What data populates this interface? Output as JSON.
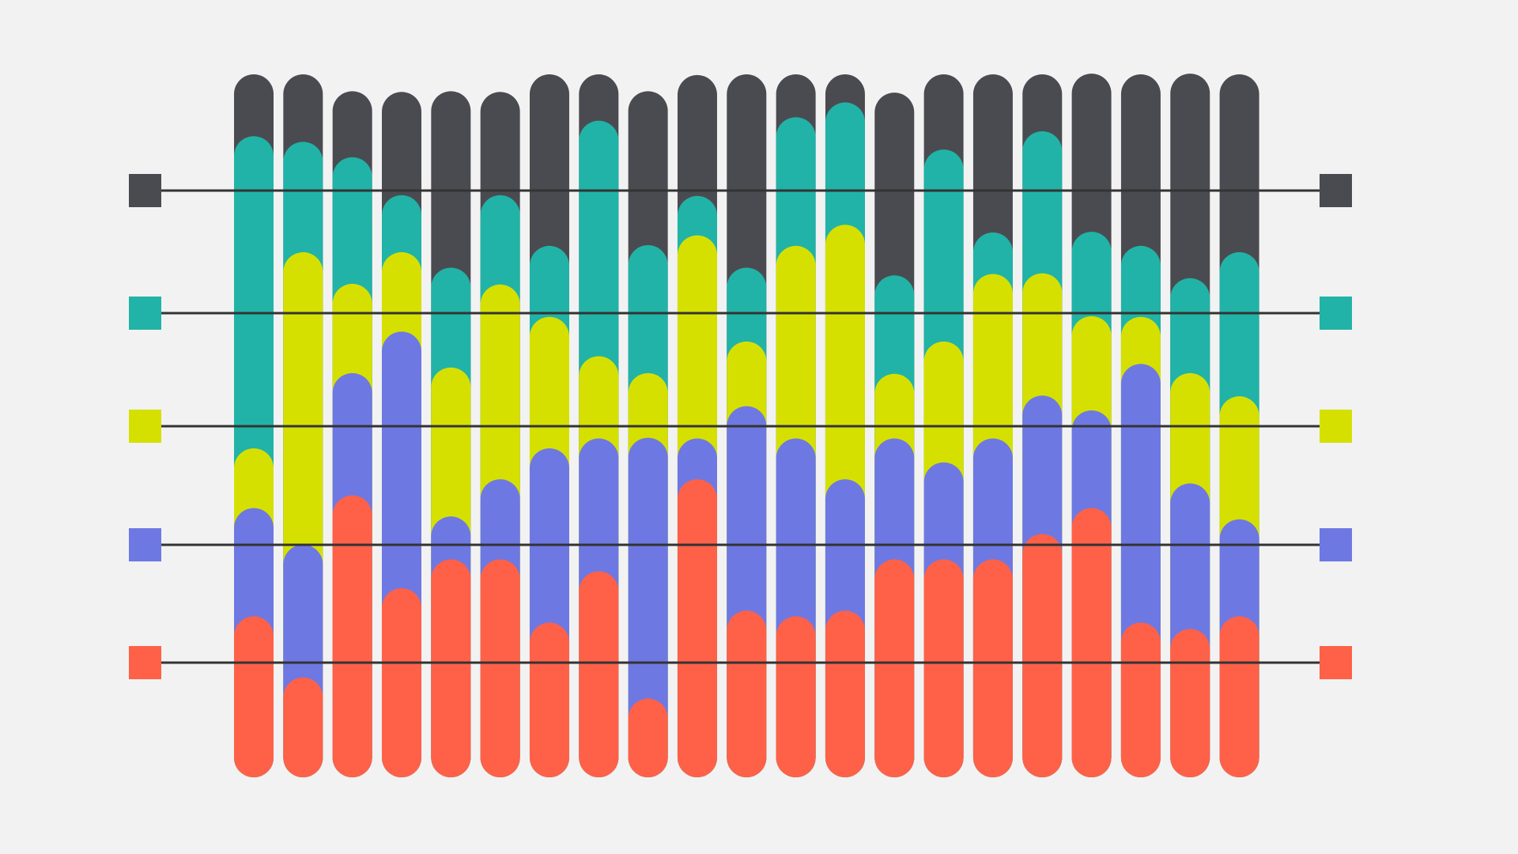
{
  "chart_data": {
    "type": "stacked_bar",
    "ylim": [
      0,
      100
    ],
    "series": [
      {
        "color": "#fe6148",
        "values": [
          22.9,
          14.2,
          40.1,
          26.9,
          31.0,
          31.0,
          22.0,
          29.3,
          11.2,
          42.4,
          23.7,
          22.9,
          23.7,
          31.0,
          31.0,
          31.0,
          34.6,
          38.3,
          22.0,
          21.1,
          22.9
        ]
      },
      {
        "color": "#6e78e2",
        "values": [
          15.4,
          18.9,
          17.4,
          36.5,
          6.1,
          11.4,
          24.8,
          18.9,
          37.1,
          5.8,
          29.1,
          25.3,
          18.7,
          17.2,
          13.8,
          17.2,
          19.7,
          13.9,
          36.8,
          20.7,
          13.8
        ]
      },
      {
        "color": "#d6e000",
        "values": [
          8.5,
          41.6,
          12.7,
          11.3,
          21.2,
          27.7,
          18.7,
          11.7,
          9.2,
          28.9,
          9.2,
          27.4,
          36.2,
          9.2,
          17.2,
          23.4,
          17.4,
          13.4,
          6.7,
          15.7,
          17.5
        ]
      },
      {
        "color": "#21b3a7",
        "values": [
          44.4,
          15.7,
          18.0,
          8.1,
          14.2,
          12.7,
          10.1,
          33.5,
          18.2,
          5.6,
          10.5,
          18.3,
          17.4,
          14.0,
          27.3,
          5.9,
          20.2,
          12.0,
          10.1,
          13.5,
          20.5
        ]
      },
      {
        "color": "#4a4b50",
        "values": [
          8.8,
          9.6,
          9.4,
          14.7,
          25.1,
          14.7,
          24.4,
          6.6,
          21.9,
          17.2,
          27.5,
          6.1,
          4.0,
          26.0,
          10.7,
          22.5,
          8.1,
          22.5,
          24.4,
          29.1,
          25.3
        ]
      }
    ]
  }
}
